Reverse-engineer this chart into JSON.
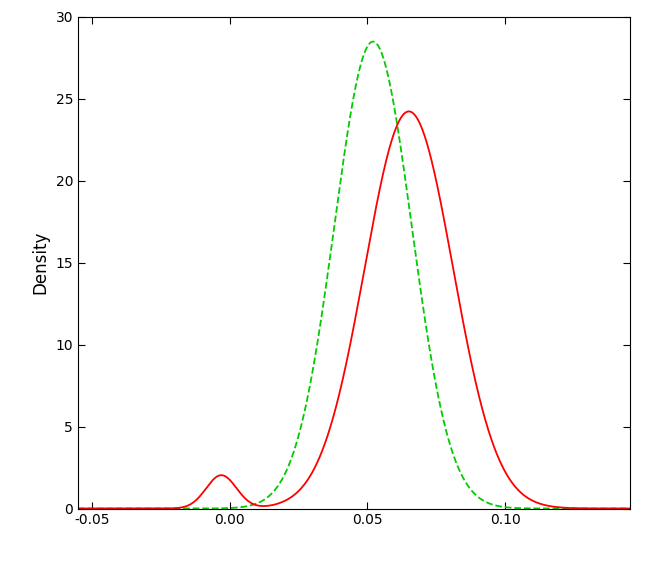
{
  "title": "",
  "xlabel": "",
  "ylabel": "Density",
  "xlim": [
    -0.055,
    0.145
  ],
  "ylim": [
    0,
    30
  ],
  "yticks": [
    0,
    5,
    10,
    15,
    20,
    25,
    30
  ],
  "xticks": [
    -0.05,
    0.0,
    0.05,
    0.1
  ],
  "xtick_labels": [
    "-0.05",
    "0.00",
    "0.05",
    "0.10"
  ],
  "red_line_color": "#FF0000",
  "green_line_color": "#00CC00",
  "background_color": "#FFFFFF",
  "figsize": [
    6.49,
    5.65
  ],
  "dpi": 100,
  "red_params": {
    "mean1": -0.003,
    "std1": 0.0055,
    "weight1": 0.028,
    "mean2": 0.065,
    "std2": 0.016,
    "weight2": 0.972
  },
  "green_params": {
    "mean": 0.052,
    "std": 0.014,
    "weight": 1.0
  }
}
